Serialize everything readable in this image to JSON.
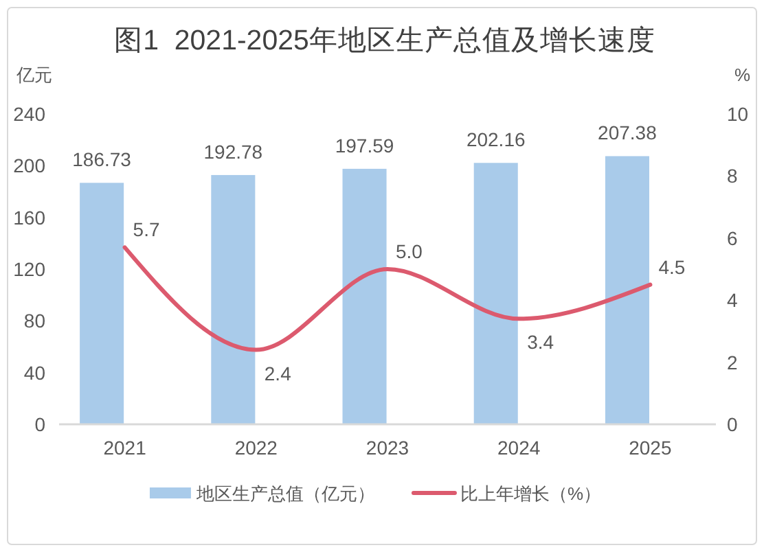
{
  "chart_data": {
    "type": "bar",
    "title": "图1  2021-2025年地区生产总值及增长速度",
    "ylabel": "亿元",
    "y2label": "%",
    "categories": [
      "2021",
      "2022",
      "2023",
      "2024",
      "2025"
    ],
    "series": [
      {
        "name": "地区生产总值（亿元）",
        "color": "#a9cbea",
        "values": [
          186.73,
          192.78,
          197.59,
          202.16,
          207.38
        ],
        "value_labels": [
          "186.73",
          "192.78",
          "197.59",
          "202.16",
          "207.38"
        ]
      },
      {
        "name": "比上年增长（%）",
        "type": "line",
        "axis": "y2",
        "color": "#dc5a6e",
        "values": [
          5.7,
          2.4,
          5.0,
          3.4,
          4.5
        ],
        "value_labels": [
          "5.7",
          "2.4",
          "5.0",
          "3.4",
          "4.5"
        ]
      }
    ],
    "ylim": [
      0,
      240
    ],
    "yticks": [
      0,
      40,
      80,
      120,
      160,
      200,
      240
    ],
    "y2lim": [
      0,
      10
    ],
    "y2ticks": [
      0,
      2,
      4,
      6,
      8,
      10
    ],
    "legend": "bottom"
  }
}
